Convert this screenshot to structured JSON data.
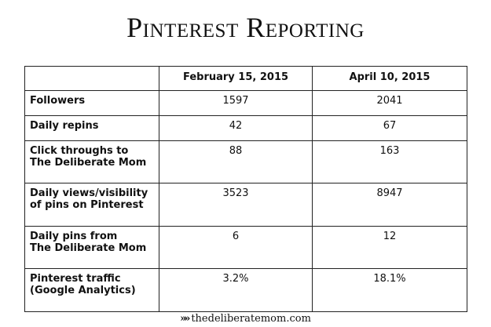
{
  "title": "Pinterest Reporting",
  "chart_data": {
    "type": "table",
    "columns": [
      "",
      "February 15, 2015",
      "April 10, 2015"
    ],
    "rows": [
      {
        "label": "Followers",
        "values": [
          "1597",
          "2041"
        ]
      },
      {
        "label": "Daily repins",
        "values": [
          "42",
          "67"
        ]
      },
      {
        "label": "Click throughs to\nThe Deliberate Mom",
        "values": [
          "88",
          "163"
        ]
      },
      {
        "label": "Daily views/visibility\nof pins on Pinterest",
        "values": [
          "3523",
          "8947"
        ]
      },
      {
        "label": "Daily pins from\nThe Deliberate Mom",
        "values": [
          "6",
          "12"
        ]
      },
      {
        "label": "Pinterest traffic\n(Google Analytics)",
        "values": [
          "3.2%",
          "18.1%"
        ]
      }
    ]
  },
  "footer": {
    "arrows": "»»",
    "text": "thedeliberatemom.com"
  }
}
